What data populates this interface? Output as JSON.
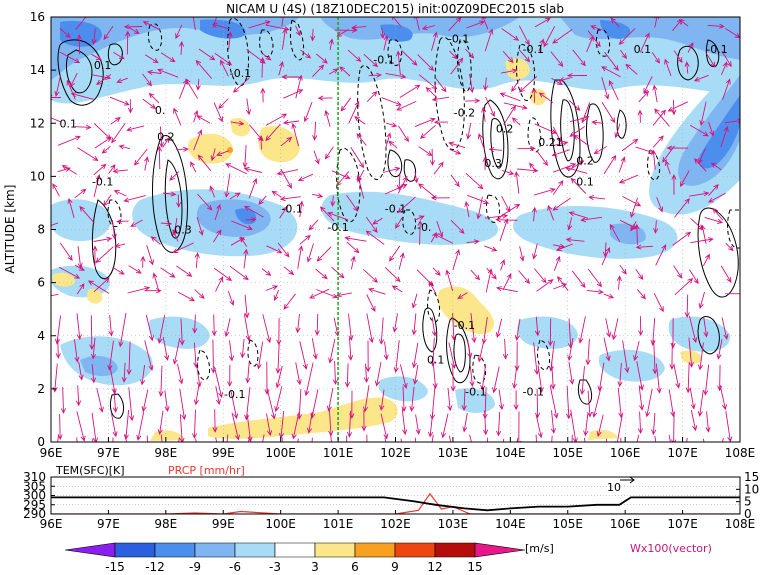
{
  "title": "NICAM U (4S) (18Z10DEC2015) init:00Z09DEC2015 slab",
  "chart_data": [
    {
      "type": "heatmap",
      "name": "main-panel",
      "ylabel": "ALTITUDE [km]",
      "x_ticks": [
        "96E",
        "97E",
        "98E",
        "99E",
        "100E",
        "101E",
        "102E",
        "103E",
        "104E",
        "105E",
        "106E",
        "107E",
        "108E"
      ],
      "x_range": [
        96,
        108
      ],
      "y_ticks": [
        0,
        2,
        4,
        6,
        8,
        10,
        12,
        14,
        16
      ],
      "y_range": [
        0,
        16
      ],
      "grid": true,
      "marker_line_lon": 101.0,
      "contour_labels": [
        {
          "text": "0.1",
          "lon": 96.9,
          "alt": 14.2
        },
        {
          "text": "-0.1",
          "lon": 99.3,
          "alt": 13.9
        },
        {
          "text": "0.1",
          "lon": 96.3,
          "alt": 12.0
        },
        {
          "text": "0.",
          "lon": 97.9,
          "alt": 12.5
        },
        {
          "text": "0.2",
          "lon": 98.0,
          "alt": 11.5
        },
        {
          "text": "-0.1",
          "lon": 96.9,
          "alt": 9.8
        },
        {
          "text": "0.3",
          "lon": 98.3,
          "alt": 8.0
        },
        {
          "text": "-0.1",
          "lon": 100.2,
          "alt": 8.8
        },
        {
          "text": "-0.1",
          "lon": 101.0,
          "alt": 8.1
        },
        {
          "text": "-0.1",
          "lon": 102.0,
          "alt": 8.8
        },
        {
          "text": "-0.",
          "lon": 102.5,
          "alt": 8.1
        },
        {
          "text": "-0.1",
          "lon": 101.8,
          "alt": 14.4
        },
        {
          "text": "-0.1",
          "lon": 103.1,
          "alt": 15.2
        },
        {
          "text": "-0.2",
          "lon": 103.2,
          "alt": 12.4
        },
        {
          "text": "0.2",
          "lon": 103.9,
          "alt": 11.8
        },
        {
          "text": "-0.1",
          "lon": 104.4,
          "alt": 14.8
        },
        {
          "text": "0.21",
          "lon": 104.7,
          "alt": 11.3
        },
        {
          "text": "0.3",
          "lon": 103.7,
          "alt": 10.5
        },
        {
          "text": "0.2",
          "lon": 105.3,
          "alt": 10.6
        },
        {
          "text": "0.1",
          "lon": 105.3,
          "alt": 9.8
        },
        {
          "text": "0.1",
          "lon": 106.3,
          "alt": 14.8
        },
        {
          "text": "-0.1",
          "lon": 107.6,
          "alt": 14.8
        },
        {
          "text": "-0.1",
          "lon": 103.2,
          "alt": 4.4
        },
        {
          "text": "0.1",
          "lon": 102.7,
          "alt": 3.1
        },
        {
          "text": "-0.1",
          "lon": 99.2,
          "alt": 1.8
        },
        {
          "text": "-0.1",
          "lon": 103.4,
          "alt": 1.9
        },
        {
          "text": "-0.1",
          "lon": 104.4,
          "alt": 1.9
        }
      ]
    },
    {
      "type": "line",
      "name": "surface-panel",
      "series": [
        {
          "name": "TEM(SFC)[K]",
          "color": "#000000",
          "x": [
            96,
            97,
            98,
            99,
            100,
            101,
            101.8,
            102.3,
            102.7,
            103.2,
            103.6,
            104.0,
            104.5,
            105,
            105.5,
            105.9,
            106.1,
            107,
            108
          ],
          "y": [
            299,
            299,
            299,
            299,
            299,
            299,
            299,
            297,
            295,
            293,
            292,
            293,
            294,
            294,
            295,
            295,
            299,
            299,
            299
          ]
        },
        {
          "name": "PRCP [mm/hr]",
          "color": "#e8382e",
          "x": [
            96,
            97,
            98,
            98.5,
            99,
            99.3,
            100,
            101,
            102,
            102.4,
            102.6,
            102.8,
            103.0,
            103.3,
            104,
            105,
            106,
            107,
            108
          ],
          "y": [
            0,
            0,
            0,
            0.4,
            0,
            1.0,
            0,
            0,
            0,
            1.5,
            8.2,
            2.0,
            3.0,
            0,
            0,
            0,
            0,
            0,
            0
          ]
        }
      ],
      "left_ticks": [
        "310",
        "305",
        "300",
        "295",
        "290"
      ],
      "left_range": [
        290,
        310
      ],
      "right_ticks": [
        "15",
        "10",
        "5",
        "0"
      ],
      "right_range": [
        0,
        15
      ],
      "annotation": "10"
    }
  ],
  "colorbar": {
    "labels": [
      "-15",
      "-12",
      "-9",
      "-6",
      "-3",
      "3",
      "6",
      "9",
      "12",
      "15"
    ],
    "unit": "[m/s]",
    "colors": [
      "#8a1ff0",
      "#2b5fe0",
      "#4b8eee",
      "#7fb6f2",
      "#a8dcf6",
      "#ffffff",
      "#fce68a",
      "#f7a11e",
      "#ee4511",
      "#b70c0c",
      "#e8188a"
    ],
    "vector_label": "Wx100(vector)"
  }
}
